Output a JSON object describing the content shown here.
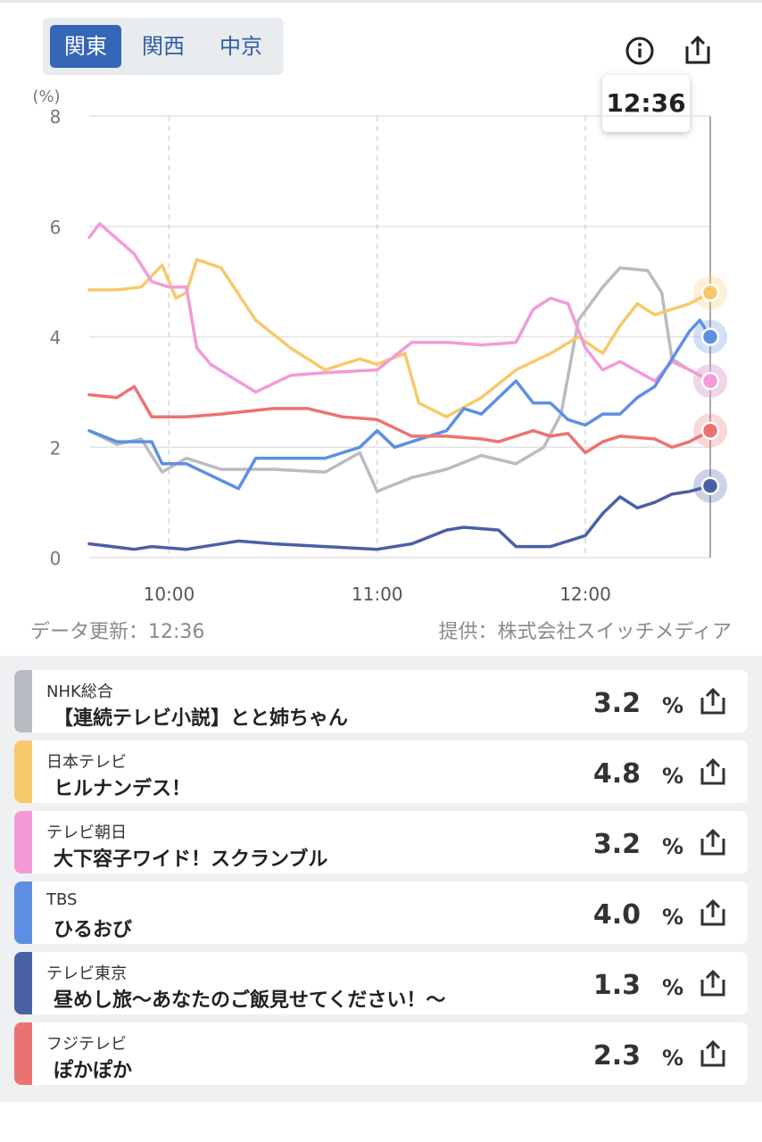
{
  "region_tabs": [
    {
      "label": "関東",
      "active": true
    },
    {
      "label": "関西",
      "active": false
    },
    {
      "label": "中京",
      "active": false
    }
  ],
  "icons": {
    "info": "info-circle-icon",
    "share": "share-icon"
  },
  "tooltip_time": "12:36",
  "footer": {
    "updated": "データ更新：12:36",
    "provider": "提供：株式会社スイッチメディア"
  },
  "chart_data": {
    "type": "line",
    "ylabel": "(%)",
    "ylim": [
      0,
      8
    ],
    "yticks": [
      0,
      2,
      4,
      6,
      8
    ],
    "xlim": [
      "09:37",
      "12:36"
    ],
    "xticks": [
      "10:00",
      "11:00",
      "12:00"
    ],
    "cursor_time": "12:36",
    "grid": true,
    "series": [
      {
        "name": "NHK総合",
        "color": "#b9bcc3",
        "x": [
          "09:37",
          "09:45",
          "09:52",
          "09:58",
          "10:05",
          "10:15",
          "10:30",
          "10:45",
          "10:55",
          "11:00",
          "11:10",
          "11:20",
          "11:30",
          "11:40",
          "11:48",
          "11:53",
          "11:58",
          "12:05",
          "12:10",
          "12:18",
          "12:22",
          "12:25",
          "12:30",
          "12:36"
        ],
        "y": [
          2.3,
          2.05,
          2.15,
          1.55,
          1.8,
          1.6,
          1.6,
          1.55,
          1.9,
          1.2,
          1.45,
          1.6,
          1.85,
          1.7,
          2.0,
          2.6,
          4.3,
          4.9,
          5.25,
          5.2,
          4.8,
          3.6,
          3.4,
          3.2
        ]
      },
      {
        "name": "日本テレビ",
        "color": "#f7c96b",
        "x": [
          "09:37",
          "09:45",
          "09:52",
          "09:58",
          "10:02",
          "10:05",
          "10:08",
          "10:15",
          "10:25",
          "10:35",
          "10:45",
          "10:55",
          "11:00",
          "11:08",
          "11:12",
          "11:20",
          "11:30",
          "11:40",
          "11:50",
          "11:58",
          "12:05",
          "12:10",
          "12:15",
          "12:20",
          "12:25",
          "12:30",
          "12:36"
        ],
        "y": [
          4.85,
          4.85,
          4.9,
          5.3,
          4.7,
          4.8,
          5.4,
          5.25,
          4.3,
          3.8,
          3.4,
          3.6,
          3.5,
          3.7,
          2.8,
          2.55,
          2.9,
          3.4,
          3.7,
          4.0,
          3.7,
          4.2,
          4.6,
          4.4,
          4.5,
          4.6,
          4.8
        ]
      },
      {
        "name": "テレビ朝日",
        "color": "#f39ad9",
        "x": [
          "09:37",
          "09:40",
          "09:50",
          "09:55",
          "10:00",
          "10:05",
          "10:08",
          "10:12",
          "10:25",
          "10:35",
          "10:45",
          "11:00",
          "11:10",
          "11:20",
          "11:30",
          "11:40",
          "11:45",
          "11:50",
          "11:55",
          "12:00",
          "12:05",
          "12:10",
          "12:20",
          "12:25",
          "12:30",
          "12:36"
        ],
        "y": [
          5.8,
          6.05,
          5.5,
          5.0,
          4.9,
          4.9,
          3.8,
          3.5,
          3.0,
          3.3,
          3.35,
          3.4,
          3.9,
          3.9,
          3.85,
          3.9,
          4.5,
          4.7,
          4.6,
          3.8,
          3.4,
          3.55,
          3.2,
          3.55,
          3.4,
          3.2
        ]
      },
      {
        "name": "TBS",
        "color": "#5d90e3",
        "x": [
          "09:37",
          "09:45",
          "09:50",
          "09:55",
          "09:58",
          "10:05",
          "10:15",
          "10:20",
          "10:25",
          "10:35",
          "10:45",
          "10:55",
          "11:00",
          "11:05",
          "11:10",
          "11:20",
          "11:25",
          "11:30",
          "11:40",
          "11:45",
          "11:50",
          "11:55",
          "12:00",
          "12:05",
          "12:10",
          "12:15",
          "12:20",
          "12:25",
          "12:30",
          "12:33",
          "12:36"
        ],
        "y": [
          2.3,
          2.1,
          2.1,
          2.1,
          1.7,
          1.7,
          1.4,
          1.25,
          1.8,
          1.8,
          1.8,
          2.0,
          2.3,
          2.0,
          2.1,
          2.3,
          2.7,
          2.6,
          3.2,
          2.8,
          2.8,
          2.5,
          2.4,
          2.6,
          2.6,
          2.9,
          3.1,
          3.6,
          4.1,
          4.3,
          4.0
        ]
      },
      {
        "name": "テレビ東京",
        "color": "#4a60a5",
        "x": [
          "09:37",
          "09:50",
          "09:55",
          "10:05",
          "10:20",
          "10:30",
          "10:45",
          "11:00",
          "11:10",
          "11:20",
          "11:25",
          "11:35",
          "11:40",
          "11:50",
          "11:55",
          "12:00",
          "12:05",
          "12:10",
          "12:15",
          "12:20",
          "12:25",
          "12:30",
          "12:36"
        ],
        "y": [
          0.25,
          0.15,
          0.2,
          0.15,
          0.3,
          0.25,
          0.2,
          0.15,
          0.25,
          0.5,
          0.55,
          0.5,
          0.2,
          0.2,
          0.3,
          0.4,
          0.8,
          1.1,
          0.9,
          1.0,
          1.15,
          1.2,
          1.3
        ]
      },
      {
        "name": "フジテレビ",
        "color": "#ec7272",
        "x": [
          "09:37",
          "09:45",
          "09:50",
          "09:55",
          "10:05",
          "10:15",
          "10:30",
          "10:40",
          "10:50",
          "11:00",
          "11:10",
          "11:20",
          "11:30",
          "11:35",
          "11:45",
          "11:50",
          "11:55",
          "12:00",
          "12:05",
          "12:10",
          "12:20",
          "12:25",
          "12:30",
          "12:36"
        ],
        "y": [
          2.95,
          2.9,
          3.1,
          2.55,
          2.55,
          2.6,
          2.7,
          2.7,
          2.55,
          2.5,
          2.2,
          2.2,
          2.15,
          2.1,
          2.3,
          2.2,
          2.25,
          1.9,
          2.1,
          2.2,
          2.15,
          2.0,
          2.1,
          2.3
        ]
      }
    ]
  },
  "programs": [
    {
      "station": "NHK総合",
      "program": "【連続テレビ小説】とと姉ちゃん",
      "rating": "3.2",
      "unit": "%",
      "color": "#b9bcc3"
    },
    {
      "station": "日本テレビ",
      "program": "ヒルナンデス！",
      "rating": "4.8",
      "unit": "%",
      "color": "#f7c96b"
    },
    {
      "station": "テレビ朝日",
      "program": "大下容子ワイド！スクランブル",
      "rating": "3.2",
      "unit": "%",
      "color": "#f39ad9"
    },
    {
      "station": "TBS",
      "program": "ひるおび",
      "rating": "4.0",
      "unit": "%",
      "color": "#5d90e3"
    },
    {
      "station": "テレビ東京",
      "program": "昼めし旅〜あなたのご飯見せてください！〜",
      "rating": "1.3",
      "unit": "%",
      "color": "#4a60a5"
    },
    {
      "station": "フジテレビ",
      "program": "ぽかぽか",
      "rating": "2.3",
      "unit": "%",
      "color": "#ec7272"
    }
  ]
}
